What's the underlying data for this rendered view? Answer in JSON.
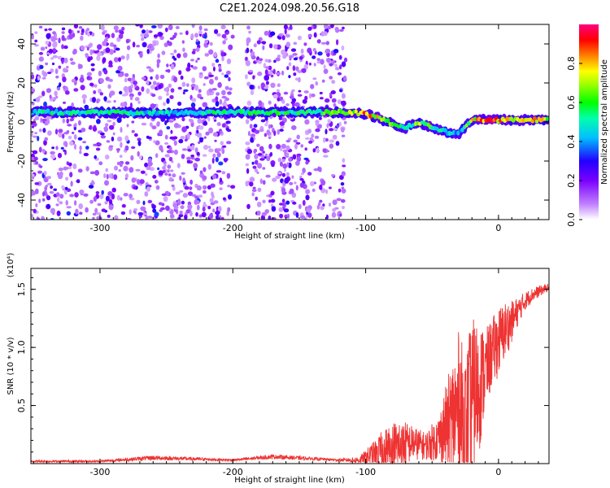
{
  "title": "C2E1.2024.098.20.56.G18",
  "chart_data": [
    {
      "type": "heatmap",
      "xlabel": "Height of straight line (km)",
      "ylabel": "Frequency (Hz)",
      "xlim": [
        -352,
        38
      ],
      "ylim": [
        -50,
        50
      ],
      "xticks": [
        -300,
        -200,
        -100,
        0
      ],
      "xtick_labels": [
        "-300",
        "-200",
        "-100",
        "0"
      ],
      "yticks": [
        -40,
        -20,
        0,
        20,
        40
      ],
      "ytick_labels": [
        "-40",
        "-20",
        "0",
        "20",
        "40"
      ],
      "colorbar": {
        "label": "Normalized spectral amplitude",
        "range": [
          0,
          1
        ],
        "ticks": [
          0.0,
          0.2,
          0.4,
          0.6,
          0.8
        ],
        "tick_labels": [
          "0.0",
          "0.2",
          "0.4",
          "0.6",
          "0.8"
        ],
        "colors": [
          "#ffffff",
          "#7a00ff",
          "#2200ff",
          "#00ffff",
          "#00ff00",
          "#ffff00",
          "#ff0000",
          "#ff0080"
        ]
      },
      "ridge": {
        "x": [
          -352,
          -330,
          -300,
          -250,
          -200,
          -150,
          -110,
          -100,
          -90,
          -80,
          -70,
          -60,
          -50,
          -40,
          -30,
          -20,
          -10,
          0,
          10,
          20,
          30,
          38
        ],
        "freq": [
          5,
          5,
          5,
          4.5,
          5,
          5,
          5,
          4,
          2,
          -1,
          -3,
          0,
          -3,
          -5,
          -6,
          1,
          1,
          1,
          1,
          1,
          1,
          1
        ],
        "amplitude": [
          0.5,
          0.55,
          0.55,
          0.5,
          0.55,
          0.6,
          0.7,
          0.9,
          0.8,
          0.6,
          0.5,
          0.7,
          0.6,
          0.5,
          0.4,
          0.8,
          0.9,
          0.9,
          0.85,
          0.9,
          0.85,
          0.7
        ]
      },
      "scatter_regions": [
        {
          "x": [
            -352,
            -200
          ],
          "intensity": 0.25
        },
        {
          "x": [
            -190,
            -115
          ],
          "intensity": 0.2
        }
      ]
    },
    {
      "type": "line",
      "xlabel": "Height of straight line (km)",
      "ylabel": "SNR (10 * v/v)",
      "scale_label": "(x10⁴)",
      "xlim": [
        -352,
        38
      ],
      "ylim": [
        0,
        1.68
      ],
      "xticks": [
        -300,
        -200,
        -100,
        0
      ],
      "xtick_labels": [
        "-300",
        "-200",
        "-100",
        "0"
      ],
      "yticks": [
        0.5,
        1.0,
        1.5
      ],
      "ytick_labels": [
        "0.5",
        "1.0",
        "1.5"
      ],
      "color": "#ee3333",
      "series": [
        {
          "x": [
            -352,
            -300,
            -260,
            -200,
            -170,
            -120,
            -105,
            -95,
            -85,
            -75,
            -65,
            -55,
            -45,
            -35,
            -30,
            -25,
            -20,
            -15,
            -10,
            -5,
            0,
            5,
            10,
            15,
            20,
            25,
            30,
            38
          ],
          "baseline": [
            0.02,
            0.02,
            0.05,
            0.03,
            0.06,
            0.03,
            0.03,
            0.08,
            0.12,
            0.15,
            0.18,
            0.15,
            0.22,
            0.4,
            0.45,
            0.35,
            0.55,
            0.65,
            0.8,
            0.95,
            1.05,
            1.15,
            1.22,
            1.32,
            1.4,
            1.45,
            1.48,
            1.52
          ],
          "amplitude": [
            0.01,
            0.01,
            0.02,
            0.01,
            0.02,
            0.01,
            0.03,
            0.1,
            0.2,
            0.25,
            0.15,
            0.12,
            0.2,
            0.5,
            0.7,
            0.6,
            0.7,
            0.6,
            0.35,
            0.3,
            0.3,
            0.25,
            0.18,
            0.12,
            0.08,
            0.06,
            0.05,
            0.03
          ]
        }
      ]
    }
  ]
}
